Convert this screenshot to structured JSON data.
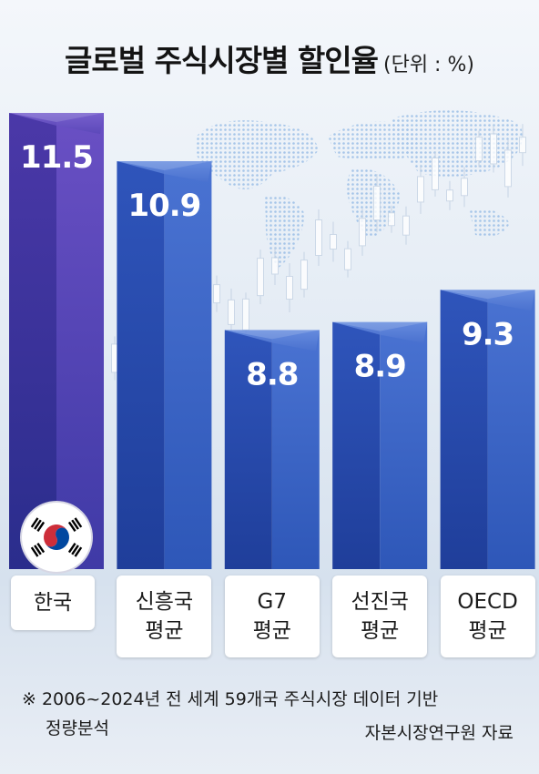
{
  "title": "글로벌 주식시장별 할인율",
  "unit": "(단위 : %)",
  "colors": {
    "korea_bar": "#4a3aa8",
    "other_bar": "#2d52b8",
    "value_text": "#ffffff"
  },
  "chart_data": {
    "type": "bar",
    "title": "글로벌 주식시장별 할인율",
    "categories": [
      "한국",
      "신흥국 평균",
      "G7 평균",
      "선진국 평균",
      "OECD 평균"
    ],
    "category_lines": [
      [
        "한국"
      ],
      [
        "신흥국",
        "평균"
      ],
      [
        "G7",
        "평균"
      ],
      [
        "선진국",
        "평균"
      ],
      [
        "OECD",
        "평균"
      ]
    ],
    "values": [
      11.5,
      10.9,
      8.8,
      8.9,
      9.3
    ],
    "value_labels": [
      "11.5",
      "10.9",
      "8.8",
      "8.9",
      "9.3"
    ],
    "highlight": "한국",
    "highlight_icon": "korean-flag-icon",
    "xlabel": "",
    "ylabel": ""
  },
  "footnote": {
    "line1": "※ 2006~2024년 전 세계 59개국 주식시장 데이터 기반",
    "line2": "정량분석"
  },
  "source": "자본시장연구원 자료"
}
